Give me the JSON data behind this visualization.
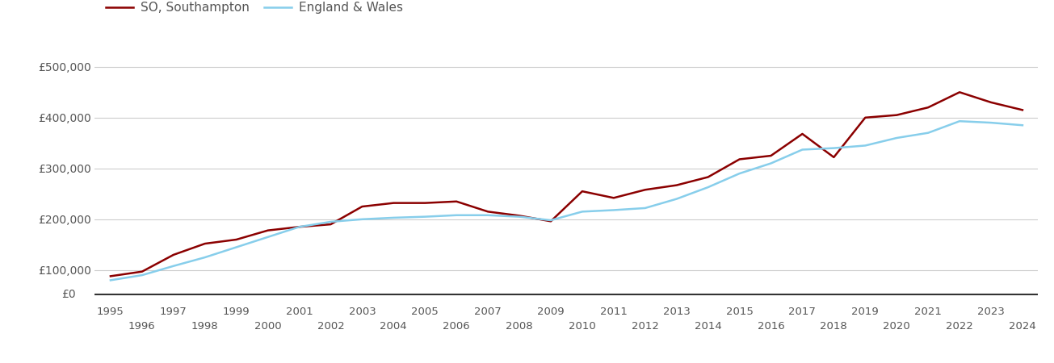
{
  "so_years": [
    1995,
    1996,
    1997,
    1998,
    1999,
    2000,
    2001,
    2002,
    2003,
    2004,
    2005,
    2006,
    2007,
    2008,
    2009,
    2010,
    2011,
    2012,
    2013,
    2014,
    2015,
    2016,
    2017,
    2018,
    2019,
    2020,
    2021,
    2022,
    2023,
    2024
  ],
  "so_values": [
    88000,
    97000,
    130000,
    152000,
    160000,
    178000,
    185000,
    190000,
    225000,
    232000,
    232000,
    235000,
    215000,
    207000,
    196000,
    255000,
    242000,
    258000,
    267000,
    283000,
    318000,
    325000,
    368000,
    322000,
    400000,
    405000,
    420000,
    450000,
    430000,
    415000
  ],
  "ew_years": [
    1995,
    1996,
    1997,
    1998,
    1999,
    2000,
    2001,
    2002,
    2003,
    2004,
    2005,
    2006,
    2007,
    2008,
    2009,
    2010,
    2011,
    2012,
    2013,
    2014,
    2015,
    2016,
    2017,
    2018,
    2019,
    2020,
    2021,
    2022,
    2023,
    2024
  ],
  "ew_values": [
    80000,
    90000,
    108000,
    125000,
    145000,
    165000,
    185000,
    195000,
    200000,
    203000,
    205000,
    208000,
    208000,
    205000,
    198000,
    215000,
    218000,
    222000,
    240000,
    263000,
    290000,
    310000,
    337000,
    340000,
    345000,
    360000,
    370000,
    393000,
    390000,
    385000
  ],
  "so_color": "#8B0000",
  "ew_color": "#87CEEB",
  "so_label": "SO, Southampton",
  "ew_label": "England & Wales",
  "ylim_main": [
    60000,
    560000
  ],
  "ylim_zero": [
    0,
    560000
  ],
  "yticks": [
    100000,
    200000,
    300000,
    400000,
    500000
  ],
  "ytick_labels": [
    "£100,000",
    "£200,000",
    "£300,000",
    "£400,000",
    "£500,000"
  ],
  "xticks_odd": [
    1995,
    1997,
    1999,
    2001,
    2003,
    2005,
    2007,
    2009,
    2011,
    2013,
    2015,
    2017,
    2019,
    2021,
    2023
  ],
  "xticks_even": [
    1996,
    1998,
    2000,
    2002,
    2004,
    2006,
    2008,
    2010,
    2012,
    2014,
    2016,
    2018,
    2020,
    2022,
    2024
  ],
  "grid_color": "#cccccc",
  "background_color": "#ffffff",
  "line_width": 1.8,
  "xlim": [
    1994.5,
    2024.5
  ],
  "legend_fontsize": 11,
  "tick_fontsize": 10,
  "text_color": "#555555"
}
